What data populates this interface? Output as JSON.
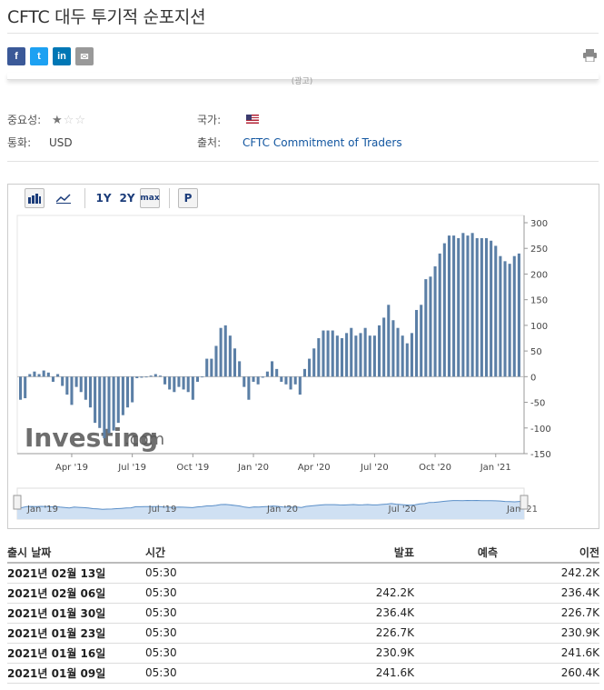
{
  "title": "CFTC 대두 투기적 순포지션",
  "share": {
    "facebook": "f",
    "twitter": "t",
    "linkedin": "in",
    "email": "✉"
  },
  "ad_label": "(광고)",
  "meta": {
    "importance_label": "중요성:",
    "importance_stars": 1,
    "country_label": "국가:",
    "currency_label": "통화:",
    "currency_value": "USD",
    "source_label": "출처:",
    "source_value": "CFTC Commitment of Traders"
  },
  "toolbar": {
    "y1": "1Y",
    "y2": "2Y",
    "max": "max",
    "p": "P"
  },
  "watermark": {
    "brand": "Investing",
    "suffix": ".com"
  },
  "chart_data": {
    "type": "bar",
    "ylim": [
      -150,
      300
    ],
    "yticks": [
      300,
      250,
      200,
      150,
      100,
      50,
      0,
      -50,
      -100,
      -150
    ],
    "xticks": [
      {
        "label": "Apr '19",
        "index": 11
      },
      {
        "label": "Jul '19",
        "index": 24
      },
      {
        "label": "Oct '19",
        "index": 37
      },
      {
        "label": "Jan '20",
        "index": 50
      },
      {
        "label": "Apr '20",
        "index": 63
      },
      {
        "label": "Jul '20",
        "index": 76
      },
      {
        "label": "Oct '20",
        "index": 89
      },
      {
        "label": "Jan '21",
        "index": 102
      }
    ],
    "navigator_labels": [
      "Jan '19",
      "Jul '19",
      "Jan '20",
      "Jul '20",
      "Jan '21"
    ],
    "values": [
      -45,
      -42,
      5,
      10,
      5,
      12,
      8,
      -10,
      5,
      -18,
      -35,
      -55,
      -20,
      -30,
      -45,
      -60,
      -90,
      -100,
      -120,
      -110,
      -105,
      -90,
      -75,
      -60,
      -50,
      -3,
      -2,
      0,
      2,
      5,
      2,
      -15,
      -25,
      -30,
      -20,
      -25,
      -30,
      -45,
      -10,
      0,
      35,
      35,
      60,
      95,
      100,
      80,
      55,
      30,
      -20,
      -45,
      -10,
      -15,
      -2,
      10,
      30,
      15,
      -10,
      -15,
      -25,
      -15,
      -35,
      15,
      35,
      55,
      75,
      90,
      90,
      90,
      80,
      75,
      85,
      95,
      80,
      85,
      95,
      80,
      80,
      100,
      115,
      140,
      110,
      95,
      80,
      65,
      85,
      130,
      140,
      190,
      195,
      215,
      240,
      260,
      275,
      275,
      270,
      280,
      275,
      280,
      270,
      270,
      270,
      265,
      255,
      235,
      225,
      220,
      235,
      240
    ]
  },
  "table": {
    "headers": {
      "date": "출시 날짜",
      "time": "시간",
      "actual": "발표",
      "forecast": "예측",
      "previous": "이전"
    },
    "rows": [
      {
        "date": "2021년 02월 13일",
        "time": "05:30",
        "actual": "",
        "forecast": "",
        "previous": "242.2K"
      },
      {
        "date": "2021년 02월 06일",
        "time": "05:30",
        "actual": "242.2K",
        "forecast": "",
        "previous": "236.4K"
      },
      {
        "date": "2021년 01월 30일",
        "time": "05:30",
        "actual": "236.4K",
        "forecast": "",
        "previous": "226.7K"
      },
      {
        "date": "2021년 01월 23일",
        "time": "05:30",
        "actual": "226.7K",
        "forecast": "",
        "previous": "230.9K"
      },
      {
        "date": "2021년 01월 16일",
        "time": "05:30",
        "actual": "230.9K",
        "forecast": "",
        "previous": "241.6K"
      },
      {
        "date": "2021년 01월 09일",
        "time": "05:30",
        "actual": "241.6K",
        "forecast": "",
        "previous": "260.4K"
      }
    ]
  }
}
